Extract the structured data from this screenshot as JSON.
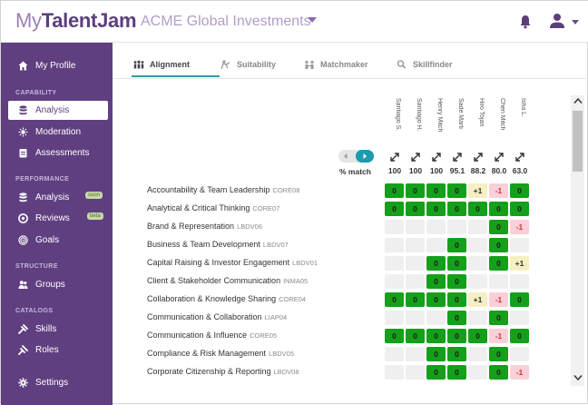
{
  "header": {
    "logo_my": "My",
    "logo_talent": "TalentJam",
    "org_name": "ACME Global Investments"
  },
  "sidebar": {
    "profile_label": "My Profile",
    "sections": {
      "capability": "CAPABILITY",
      "performance": "PERFORMANCE",
      "structure": "STRUCTURE",
      "catalogs": "CATALOGS"
    },
    "items": {
      "analysis": "Analysis",
      "moderation": "Moderation",
      "assessments": "Assessments",
      "perf_analysis": "Analysis",
      "perf_analysis_badge": "soon",
      "reviews": "Reviews",
      "reviews_badge": "beta",
      "goals": "Goals",
      "groups": "Groups",
      "skills": "Skills",
      "roles": "Roles",
      "settings": "Settings"
    }
  },
  "tabs": [
    "Alignment",
    "Suitability",
    "Matchmaker",
    "Skillfinder"
  ],
  "matrix": {
    "match_label": "% match",
    "columns": [
      {
        "name": "Santiago S.",
        "pct": "100"
      },
      {
        "name": "Santiago H.",
        "pct": "100"
      },
      {
        "name": "Henry Mitch",
        "pct": "100"
      },
      {
        "name": "Sade Marti",
        "pct": "95.1"
      },
      {
        "name": "Hiro Tojan",
        "pct": "88.2"
      },
      {
        "name": "Chen Mitch",
        "pct": "80.0"
      },
      {
        "name": "Isha L.",
        "pct": "63.0"
      }
    ],
    "rows": [
      {
        "name": "Accountability & Team Leadership",
        "code": "CORE08",
        "cells": [
          "0",
          "0",
          "0",
          "0",
          "+1",
          "-1",
          "0"
        ]
      },
      {
        "name": "Analytical & Critical Thinking",
        "code": "CORE07",
        "cells": [
          "0",
          "0",
          "0",
          "0",
          "0",
          "0",
          "0"
        ]
      },
      {
        "name": "Brand & Representation",
        "code": "LBDV06",
        "cells": [
          "",
          "",
          "",
          "",
          "",
          "0",
          "-1"
        ]
      },
      {
        "name": "Business & Team Development",
        "code": "LBDV07",
        "cells": [
          "",
          "",
          "",
          "0",
          "",
          "0",
          ""
        ]
      },
      {
        "name": "Capital Raising & Investor Engagement",
        "code": "LBDV01",
        "cells": [
          "",
          "",
          "0",
          "0",
          "",
          "0",
          "+1"
        ]
      },
      {
        "name": "Client & Stakeholder Communication",
        "code": "INMA05",
        "cells": [
          "",
          "",
          "0",
          "0",
          "",
          "",
          ""
        ]
      },
      {
        "name": "Collaboration & Knowledge Sharing",
        "code": "CORE04",
        "cells": [
          "0",
          "0",
          "0",
          "0",
          "+1",
          "-1",
          "0"
        ]
      },
      {
        "name": "Communication & Collaboration",
        "code": "LIAP04",
        "cells": [
          "",
          "",
          "",
          "0",
          "",
          "0",
          ""
        ]
      },
      {
        "name": "Communication & Influence",
        "code": "CORE05",
        "cells": [
          "0",
          "0",
          "0",
          "0",
          "0",
          "-1",
          "0"
        ]
      },
      {
        "name": "Compliance & Risk Management",
        "code": "LBDV05",
        "cells": [
          "",
          "",
          "0",
          "0",
          "",
          "0",
          ""
        ]
      },
      {
        "name": "Corporate Citizenship & Reporting",
        "code": "LBDV08",
        "cells": [
          "",
          "",
          "0",
          "0",
          "",
          "0",
          "-1"
        ]
      }
    ]
  },
  "colors": {
    "sidebar_bg": "#5f3f80",
    "match": "#14a01a",
    "plus": "#f6efc1",
    "minus": "#f9d0d8",
    "accent": "#1d9aae"
  }
}
